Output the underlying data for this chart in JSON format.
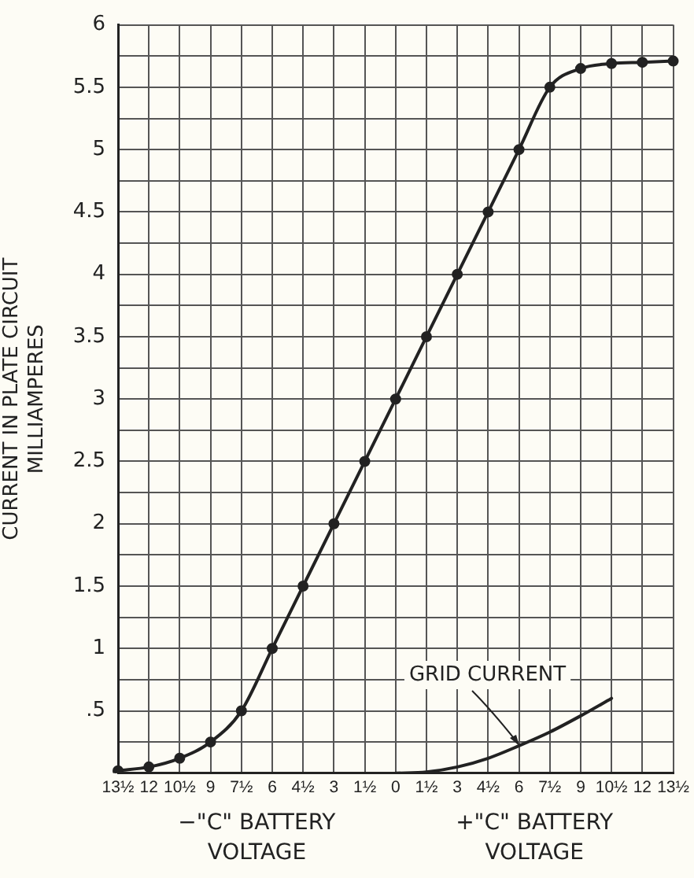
{
  "chart_data": {
    "type": "line",
    "ylabel": "CURRENT IN PLATE CIRCUIT MILLIAMPERES",
    "categories": [
      "13½",
      "12",
      "10½",
      "9",
      "7½",
      "6",
      "4½",
      "3",
      "1½",
      "0",
      "1½",
      "3",
      "4½",
      "6",
      "7½",
      "9",
      "10½",
      "12",
      "13½"
    ],
    "series": [
      {
        "color": "#222222",
        "marker": "circle",
        "values": [
          0.02,
          0.05,
          0.12,
          0.25,
          0.5,
          1.0,
          1.5,
          2.0,
          2.5,
          3.0,
          3.5,
          4.0,
          4.5,
          5.0,
          5.5,
          5.65,
          5.69,
          5.7,
          5.71
        ]
      },
      {
        "color": "#222222",
        "marker": "none",
        "values": [
          null,
          null,
          null,
          null,
          null,
          null,
          null,
          null,
          null,
          0,
          0.01,
          0.05,
          0.12,
          0.22,
          0.33,
          0.46,
          0.6,
          null,
          null
        ]
      }
    ],
    "ylim": [
      0,
      6
    ],
    "yticks": [
      {
        "value": 0,
        "label": null
      },
      {
        "value": 0.25,
        "label": null
      },
      {
        "value": 0.5,
        "label": ".5"
      },
      {
        "value": 0.75,
        "label": null
      },
      1,
      {
        "value": 1.25,
        "label": null
      },
      1.5,
      {
        "value": 1.75,
        "label": null
      },
      2,
      {
        "value": 2.25,
        "label": null
      },
      2.5,
      {
        "value": 2.75,
        "label": null
      },
      3,
      {
        "value": 3.25,
        "label": null
      },
      3.5,
      {
        "value": 3.75,
        "label": null
      },
      4,
      {
        "value": 4.25,
        "label": null
      },
      4.5,
      {
        "value": 4.75,
        "label": null
      },
      5,
      {
        "value": 5.25,
        "label": null
      },
      5.5,
      {
        "value": 5.75,
        "label": null
      },
      6
    ],
    "grid": true,
    "legend": false,
    "annotations": [
      "GRID CURRENT",
      "−\"C\" BATTERY VOLTAGE",
      "+\"C\" BATTERY VOLTAGE"
    ]
  }
}
